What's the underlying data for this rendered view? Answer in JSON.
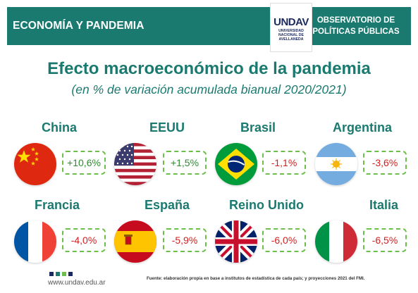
{
  "header": {
    "section_label": "ECONOMÍA Y PANDEMIA",
    "observatorio_line1": "OBSERVATORIO DE",
    "observatorio_line2": "POLÍTICAS PÚBLICAS",
    "logo_word": "UNDAV",
    "logo_sub1": "UNIVERSIDAD",
    "logo_sub2": "NACIONAL DE",
    "logo_sub3": "AVELLANEDA",
    "brand_color": "#1a7a6f"
  },
  "title": "Efecto macroeconómico de la pandemia",
  "subtitle": "(en % de variación acumulada bianual 2020/2021)",
  "countries": [
    {
      "name": "China",
      "value": "+10,6%",
      "flag": "china-flag"
    },
    {
      "name": "EEUU",
      "value": "+1,5%",
      "flag": "usa-flag"
    },
    {
      "name": "Brasil",
      "value": "-1,1%",
      "flag": "brazil-flag"
    },
    {
      "name": "Argentina",
      "value": "-3,6%",
      "flag": "argentina-flag"
    },
    {
      "name": "Francia",
      "value": "-4,0%",
      "flag": "france-flag"
    },
    {
      "name": "España",
      "value": "-5,9%",
      "flag": "spain-flag"
    },
    {
      "name": "Reino Unido",
      "value": "-6,0%",
      "flag": "uk-flag"
    },
    {
      "name": "Italia",
      "value": "-6,5%",
      "flag": "italy-flag"
    }
  ],
  "footer": {
    "url": "www.undav.edu.ar",
    "source": "Fuente: elaboración propia en base a institutos de estadística de cada país; y proyecciones 2021 del FMI."
  }
}
